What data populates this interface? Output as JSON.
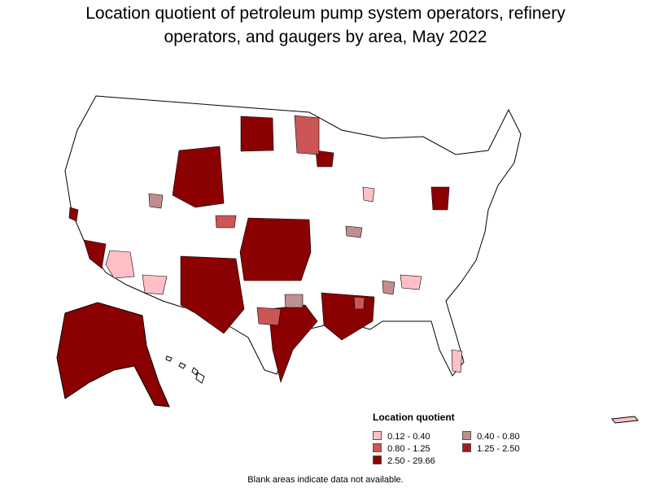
{
  "title": {
    "line1": "Location quotient of petroleum pump system operators, refinery",
    "line2": "operators, and gaugers by area, May 2022"
  },
  "legend": {
    "title": "Location quotient",
    "items": [
      {
        "label": "0.12 - 0.40",
        "color": "#ffbfc5"
      },
      {
        "label": "0.40 - 0.80",
        "color": "#bf8f8f"
      },
      {
        "label": "0.80 - 1.25",
        "color": "#cc5555"
      },
      {
        "label": "1.25 - 2.50",
        "color": "#a31c22"
      },
      {
        "label": "2.50 - 29.66",
        "color": "#8b0000"
      }
    ]
  },
  "footnote": "Blank areas indicate data not available.",
  "colors": {
    "no_data": "#ffffff",
    "border": "#000000"
  }
}
